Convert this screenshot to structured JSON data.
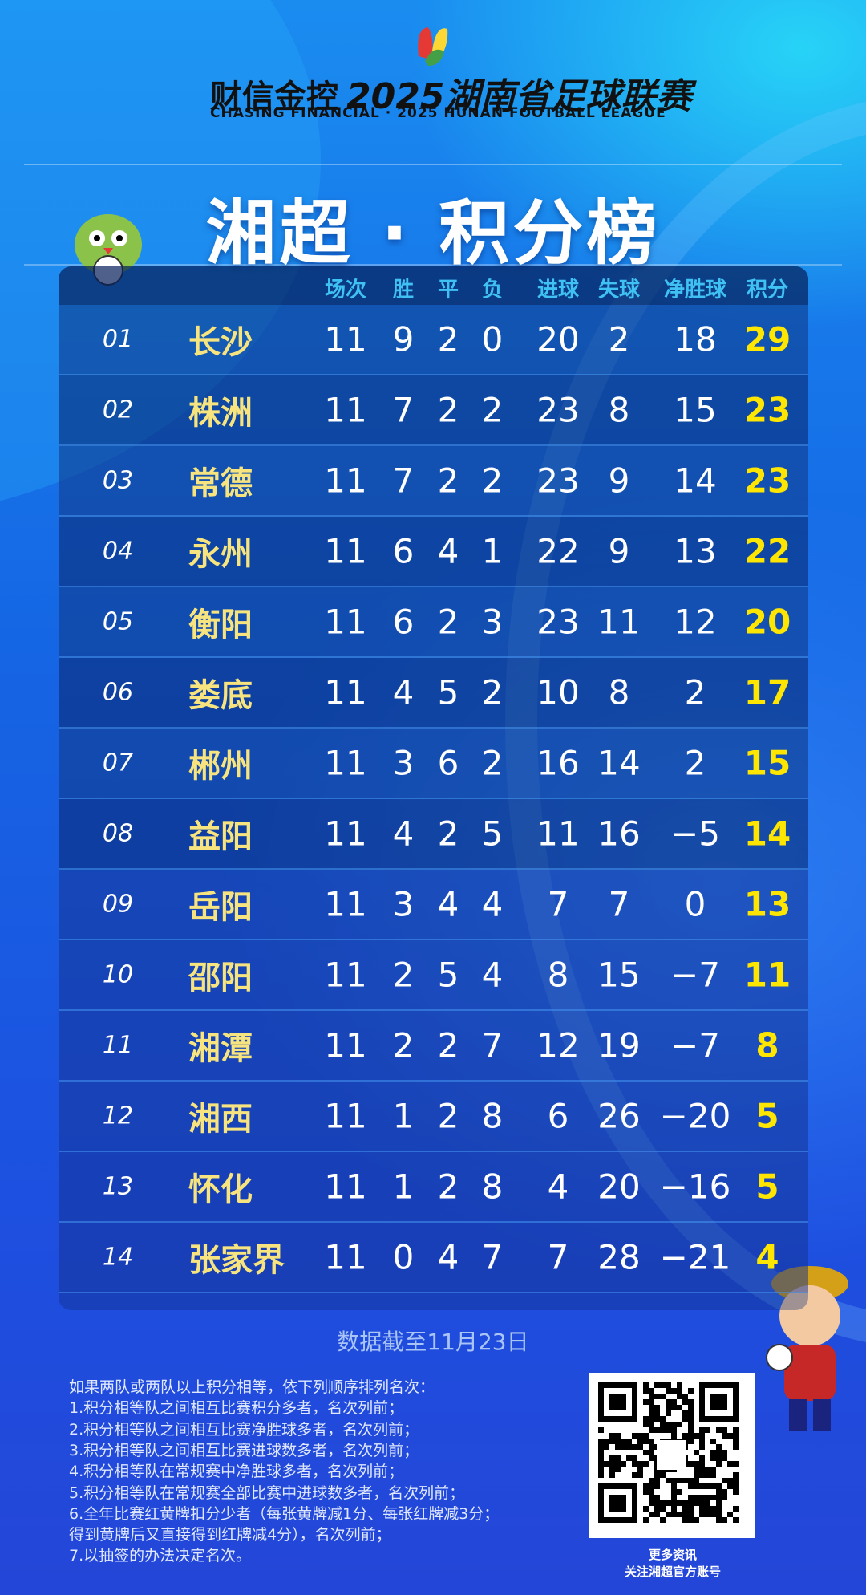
{
  "header": {
    "brand": "财信金控",
    "league": "2025湖南省足球联赛",
    "subtitle": "CHASING FINANCIAL  ·  2025 HUNAN FOOTBALL LEAGUE"
  },
  "title": "湘超 · 积分榜",
  "table": {
    "columns": [
      "场次",
      "胜",
      "平",
      "负",
      "进球",
      "失球",
      "净胜球",
      "积分"
    ],
    "rows": [
      [
        "01",
        "长沙",
        11,
        9,
        2,
        0,
        20,
        2,
        18,
        29
      ],
      [
        "02",
        "株洲",
        11,
        7,
        2,
        2,
        23,
        8,
        15,
        23
      ],
      [
        "03",
        "常德",
        11,
        7,
        2,
        2,
        23,
        9,
        14,
        23
      ],
      [
        "04",
        "永州",
        11,
        6,
        4,
        1,
        22,
        9,
        13,
        22
      ],
      [
        "05",
        "衡阳",
        11,
        6,
        2,
        3,
        23,
        11,
        12,
        20
      ],
      [
        "06",
        "娄底",
        11,
        4,
        5,
        2,
        10,
        8,
        2,
        17
      ],
      [
        "07",
        "郴州",
        11,
        3,
        6,
        2,
        16,
        14,
        2,
        15
      ],
      [
        "08",
        "益阳",
        11,
        4,
        2,
        5,
        11,
        16,
        "−5",
        14
      ],
      [
        "09",
        "岳阳",
        11,
        3,
        4,
        4,
        7,
        7,
        0,
        13
      ],
      [
        "10",
        "邵阳",
        11,
        2,
        5,
        4,
        8,
        15,
        "−7",
        11
      ],
      [
        "11",
        "湘潭",
        11,
        2,
        2,
        7,
        12,
        19,
        "−7",
        8
      ],
      [
        "12",
        "湘西",
        11,
        1,
        2,
        8,
        6,
        26,
        "−20",
        5
      ],
      [
        "13",
        "怀化",
        11,
        1,
        2,
        8,
        4,
        20,
        "−16",
        5
      ],
      [
        "14",
        "张家界",
        11,
        0,
        4,
        7,
        7,
        28,
        "−21",
        4
      ]
    ]
  },
  "date_note": "数据截至11月23日",
  "rules": [
    "如果两队或两队以上积分相等，依下列顺序排列名次：",
    "1.积分相等队之间相互比赛积分多者，名次列前；",
    "2.积分相等队之间相互比赛净胜球多者，名次列前；",
    "3.积分相等队之间相互比赛进球数多者，名次列前；",
    "4.积分相等队在常规赛中净胜球多者，名次列前；",
    "5.积分相等队在常规赛全部比赛中进球数多者，名次列前；",
    "6.全年比赛红黄牌扣分少者（每张黄牌减1分、每张红牌减3分；",
    "得到黄牌后又直接得到红牌减4分），名次列前；",
    "7.以抽签的办法决定名次。"
  ],
  "qr_caption": [
    "更多资讯",
    "关注湘超官方账号"
  ]
}
